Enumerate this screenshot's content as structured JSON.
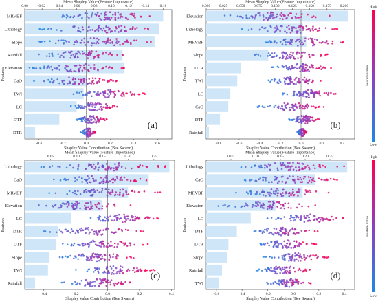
{
  "figure": {
    "top_axis_label": "Mean Shapley Value (Feature Importance)",
    "bottom_axis_label": "Shapley Value Contribution (Bee Swarm)",
    "features_axis_label": "Features",
    "colorbar_label": "Feature value",
    "colorbar_high": "High",
    "colorbar_low": "Low",
    "colors": {
      "low": "#1e88e5",
      "mid": "#8e3fbf",
      "high": "#ff0051",
      "bar": "#cfe6f8"
    }
  },
  "chart_data": [
    {
      "type": "bar+beeswarm",
      "panel_label": "(a)",
      "features": [
        "MRVBF",
        "Lithology",
        "Slope",
        "Rainfall",
        "Elevation",
        "CaO",
        "TWI",
        "LC",
        "DTF",
        "DTR"
      ],
      "mean_shap": [
        0.16,
        0.155,
        0.15,
        0.113,
        0.115,
        0.072,
        0.068,
        0.06,
        0.04,
        0.012
      ],
      "top_axis": {
        "ticks": [
          "0.00",
          "0.02",
          "0.04",
          "0.06",
          "0.08",
          "0.10",
          "0.12",
          "0.14",
          "0.16"
        ],
        "lim": [
          0,
          0.17
        ]
      },
      "bottom_axis": {
        "ticks": [
          "-0.4",
          "-0.2",
          "0.0",
          "0.2",
          "0.4",
          "0.6"
        ],
        "lim": [
          -0.52,
          0.72
        ]
      },
      "swarm_ranges": [
        [
          -0.32,
          0.68
        ],
        [
          -0.4,
          0.64
        ],
        [
          -0.42,
          0.62
        ],
        [
          -0.45,
          0.4
        ],
        [
          -0.52,
          0.33
        ],
        [
          -0.45,
          0.28
        ],
        [
          -0.2,
          0.5
        ],
        [
          -0.15,
          0.28
        ],
        [
          -0.1,
          0.2
        ],
        [
          -0.05,
          0.08
        ]
      ]
    },
    {
      "type": "bar+beeswarm",
      "panel_label": "(b)",
      "features": [
        "Elevation",
        "Lithology",
        "MRVBF",
        "Slope",
        "DTR",
        "TWI",
        "LC",
        "CaO",
        "DTF",
        "Rainfall"
      ],
      "mean_shap": [
        0.205,
        0.14,
        0.145,
        0.09,
        0.05,
        0.045,
        0.035,
        0.032,
        0.02,
        0.004
      ],
      "top_axis": {
        "ticks": [
          "0.000",
          "0.025",
          "0.050",
          "0.075",
          "0.100",
          "0.125",
          "0.150",
          "0.175",
          "0.200"
        ],
        "lim": [
          0,
          0.215
        ]
      },
      "bottom_axis": {
        "ticks": [
          "-0.8",
          "-0.6",
          "-0.4",
          "-0.2",
          "0.0",
          "0.2",
          "0.4"
        ],
        "lim": [
          -0.92,
          0.52
        ]
      },
      "swarm_ranges": [
        [
          -0.82,
          0.28
        ],
        [
          -0.62,
          0.38
        ],
        [
          -0.4,
          0.45
        ],
        [
          -0.5,
          0.3
        ],
        [
          -0.32,
          0.3
        ],
        [
          -0.38,
          0.25
        ],
        [
          -0.2,
          0.36
        ],
        [
          -0.45,
          0.22
        ],
        [
          -0.12,
          0.18
        ],
        [
          -0.04,
          0.06
        ]
      ]
    },
    {
      "type": "bar+beeswarm",
      "panel_label": "(c)",
      "features": [
        "Lithology",
        "CaO",
        "MRVBF",
        "Elevation",
        "LC",
        "DTR",
        "DTF",
        "Slope",
        "TWI",
        "Rainfall"
      ],
      "mean_shap": [
        0.28,
        0.24,
        0.2,
        0.15,
        0.09,
        0.065,
        0.06,
        0.048,
        0.045,
        0.02
      ],
      "top_axis": {
        "ticks": [
          "0.05",
          "0.10",
          "0.15",
          "0.20",
          "0.25"
        ],
        "lim": [
          0,
          0.29
        ]
      },
      "bottom_axis": {
        "ticks": [
          "-0.4",
          "-0.2",
          "0.0",
          "0.2",
          "0.4"
        ],
        "lim": [
          -0.52,
          0.42
        ]
      },
      "swarm_ranges": [
        [
          -0.42,
          0.4
        ],
        [
          -0.36,
          0.3
        ],
        [
          -0.38,
          0.33
        ],
        [
          -0.46,
          0.16
        ],
        [
          -0.18,
          0.34
        ],
        [
          -0.4,
          0.24
        ],
        [
          -0.34,
          0.26
        ],
        [
          -0.32,
          0.22
        ],
        [
          -0.2,
          0.3
        ],
        [
          -0.3,
          0.18
        ]
      ]
    },
    {
      "type": "bar+beeswarm",
      "panel_label": "(d)",
      "features": [
        "Lithology",
        "CaO",
        "MRVBF",
        "Elevation",
        "LC",
        "DTF",
        "DTR",
        "Slope",
        "Rainfall",
        "TWI"
      ],
      "mean_shap": [
        0.285,
        0.22,
        0.195,
        0.14,
        0.09,
        0.062,
        0.045,
        0.042,
        0.032,
        0.025
      ],
      "top_axis": {
        "ticks": [
          "0.05",
          "0.10",
          "0.15",
          "0.20",
          "0.25"
        ],
        "lim": [
          0,
          0.3
        ]
      },
      "bottom_axis": {
        "ticks": [
          "-0.6",
          "-0.4",
          "-0.2",
          "0.0",
          "0.2",
          "0.4"
        ],
        "lim": [
          -0.68,
          0.48
        ]
      },
      "swarm_ranges": [
        [
          -0.48,
          0.4
        ],
        [
          -0.44,
          0.36
        ],
        [
          -0.46,
          0.3
        ],
        [
          -0.6,
          0.22
        ],
        [
          -0.22,
          0.45
        ],
        [
          -0.36,
          0.2
        ],
        [
          -0.3,
          0.18
        ],
        [
          -0.24,
          0.28
        ],
        [
          -0.3,
          0.15
        ],
        [
          -0.22,
          0.16
        ]
      ]
    }
  ]
}
